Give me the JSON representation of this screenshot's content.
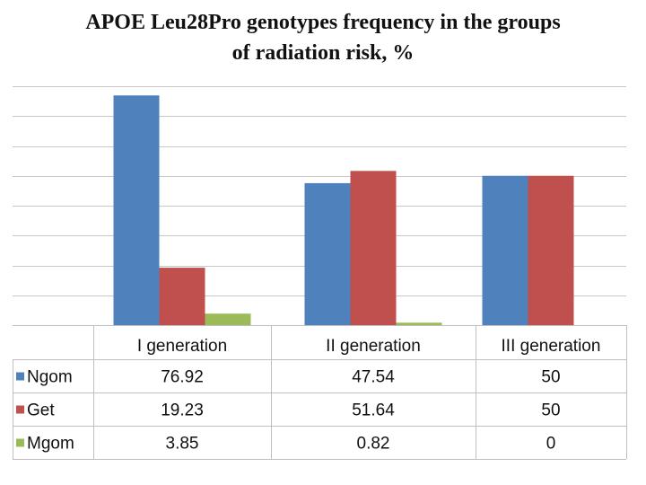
{
  "chart_data": {
    "type": "bar",
    "title_lines": [
      "APOE Leu28Pro genotypes frequency in the groups",
      "of radiation risk, %"
    ],
    "categories": [
      "I generation",
      "II generation",
      "III generation"
    ],
    "series": [
      {
        "name": "Ngom",
        "color": "#4F81BD",
        "values": [
          76.92,
          47.54,
          50
        ],
        "labels": [
          "76.92",
          "47.54",
          "50"
        ]
      },
      {
        "name": "Get",
        "color": "#C0504D",
        "values": [
          19.23,
          51.64,
          50
        ],
        "labels": [
          "19.23",
          "51.64",
          "50"
        ]
      },
      {
        "name": "Mgom",
        "color": "#9BBB59",
        "values": [
          3.85,
          0.82,
          0
        ],
        "labels": [
          "3.85",
          "0.82",
          "0"
        ]
      }
    ],
    "ylim": [
      0,
      80
    ],
    "grid": true,
    "legend": "data-table"
  }
}
